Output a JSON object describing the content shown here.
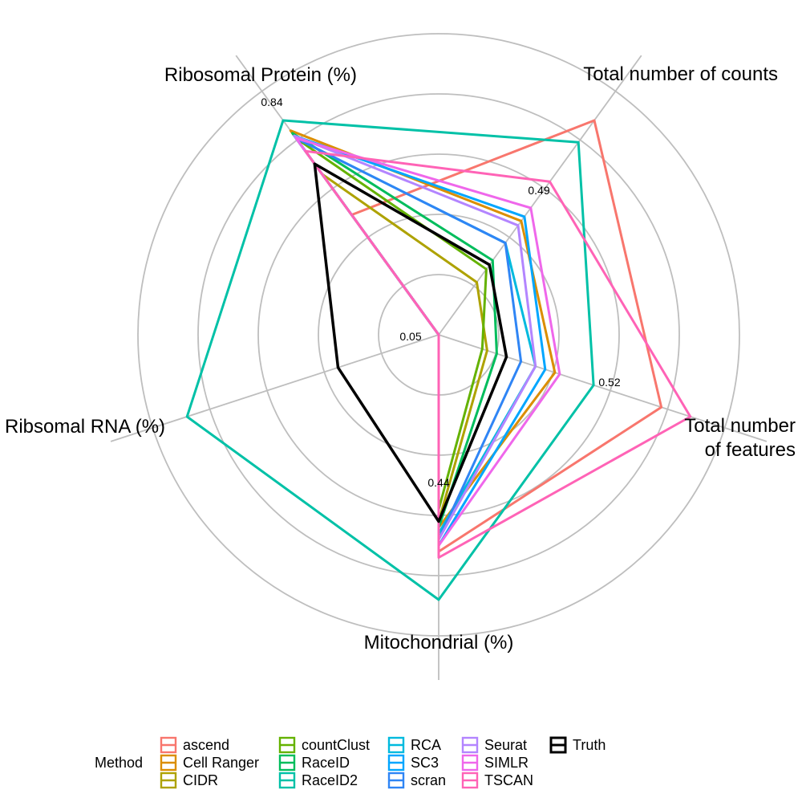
{
  "chart_data": {
    "type": "radar",
    "legend": {
      "title": "Method",
      "position": "bottom"
    },
    "axes": [
      {
        "label": "Total number of counts",
        "max_label": "0.49"
      },
      {
        "label": "Total number\nof features",
        "max_label": "0.52"
      },
      {
        "label": "Mitochondrial (%)",
        "max_label": "0.44"
      },
      {
        "label": "Ribsomal RNA (%)",
        "max_label": "0.05"
      },
      {
        "label": "Ribosomal Protein (%)",
        "max_label": "0.84"
      }
    ],
    "series": [
      {
        "name": "ascend",
        "color": "#F8766D",
        "values": [
          0.49,
          0.46,
          0.36,
          0.0,
          0.47
        ]
      },
      {
        "name": "Cell Ranger",
        "color": "#DB8E00",
        "values": [
          0.26,
          0.24,
          0.32,
          0.0,
          0.8
        ]
      },
      {
        "name": "CIDR",
        "color": "#AEA200",
        "values": [
          0.12,
          0.1,
          0.31,
          0.0,
          0.63
        ]
      },
      {
        "name": "countClust",
        "color": "#64B200",
        "values": [
          0.15,
          0.09,
          0.29,
          0.0,
          0.77
        ]
      },
      {
        "name": "RaceID",
        "color": "#00BD5C",
        "values": [
          0.17,
          0.12,
          0.32,
          0.0,
          0.79
        ]
      },
      {
        "name": "RaceID2",
        "color": "#00C1A7",
        "values": [
          0.44,
          0.32,
          0.44,
          0.05,
          0.84
        ]
      },
      {
        "name": "RCA",
        "color": "#00BADE",
        "values": [
          0.21,
          0.2,
          0.33,
          0.0,
          0.77
        ]
      },
      {
        "name": "SC3",
        "color": "#00A6FF",
        "values": [
          0.27,
          0.22,
          0.35,
          0.0,
          0.78
        ]
      },
      {
        "name": "scran",
        "color": "#2F85F5",
        "values": [
          0.21,
          0.17,
          0.34,
          0.0,
          0.77
        ]
      },
      {
        "name": "Seurat",
        "color": "#B385FF",
        "values": [
          0.25,
          0.2,
          0.34,
          0.0,
          0.78
        ]
      },
      {
        "name": "SIMLR",
        "color": "#EF67EB",
        "values": [
          0.29,
          0.25,
          0.35,
          0.0,
          0.77
        ]
      },
      {
        "name": "TSCAN",
        "color": "#FF63B6",
        "values": [
          0.35,
          0.52,
          0.37,
          0.0,
          0.72
        ]
      },
      {
        "name": "Truth",
        "color": "#000000",
        "values": [
          0.16,
          0.14,
          0.31,
          0.02,
          0.67
        ]
      }
    ]
  }
}
